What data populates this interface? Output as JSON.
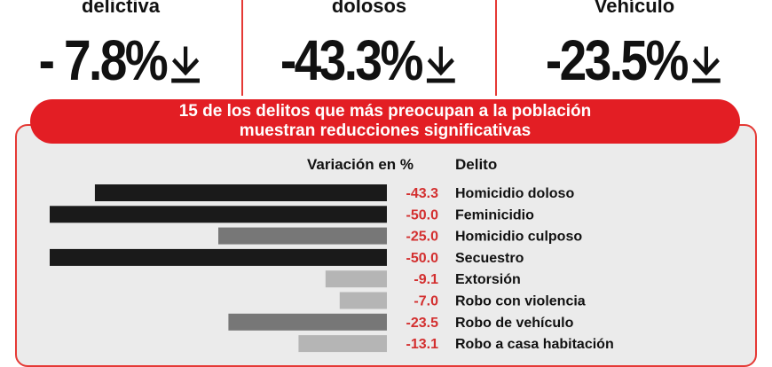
{
  "kpis": [
    {
      "label": "delictiva",
      "value": "- 7.8%"
    },
    {
      "label": "dolosos",
      "value": "-43.3%"
    },
    {
      "label": "Vehículo",
      "value": "-23.5%"
    }
  ],
  "banner": {
    "line1": "15 de los delitos que más preocupan a la población",
    "line2": "muestran reducciones significativas"
  },
  "colors": {
    "accent": "#e31e24",
    "bar_dark": "#1a1a1a",
    "bar_mid": "#777777",
    "bar_light": "#b5b5b5",
    "value_text": "#d32f2f"
  },
  "chart_data": {
    "type": "bar",
    "orientation": "horizontal",
    "xlabel": "Variación en %",
    "ylabel": "Delito",
    "xlim": [
      -50,
      0
    ],
    "categories": [
      "Homicidio doloso",
      "Feminicidio",
      "Homicidio culposo",
      "Secuestro",
      "Extorsión",
      "Robo con violencia",
      "Robo de vehículo",
      "Robo a casa habitación"
    ],
    "values": [
      -43.3,
      -50.0,
      -25.0,
      -50.0,
      -9.1,
      -7.0,
      -23.5,
      -13.1
    ],
    "value_labels": [
      "-43.3",
      "-50.0",
      "-25.0",
      "-50.0",
      "-9.1",
      "-7.0",
      "-23.5",
      "-13.1"
    ]
  }
}
